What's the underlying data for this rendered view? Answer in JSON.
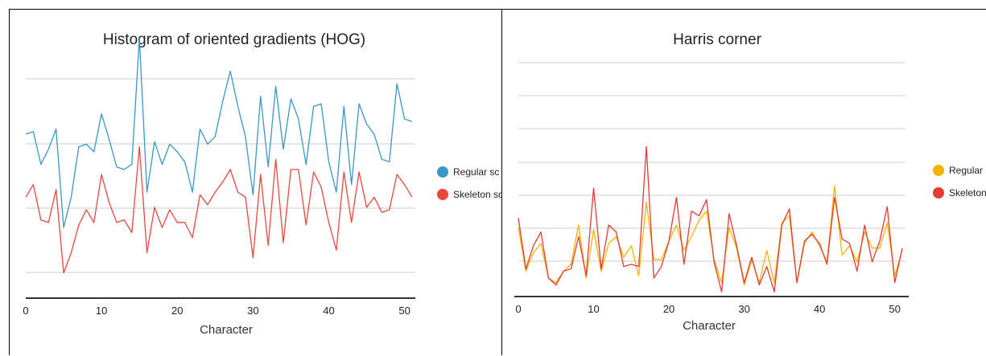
{
  "chart_data": [
    {
      "type": "line",
      "title": "Histogram of oriented gradients (HOG)",
      "xlabel": "Character",
      "ylabel": "",
      "xlim": [
        0,
        51
      ],
      "ylim": [
        0,
        10
      ],
      "x_ticks": [
        0,
        10,
        20,
        30,
        40,
        50
      ],
      "grid": true,
      "legend_position": "right",
      "legend": [
        "Regular sc",
        "Skeleton sc"
      ],
      "series": [
        {
          "name": "Regular sc",
          "color": "#3b96c4",
          "values": [
            6.5,
            6.6,
            5.3,
            5.9,
            6.7,
            2.8,
            4.0,
            6.0,
            6.1,
            5.8,
            7.3,
            6.3,
            5.2,
            5.1,
            5.3,
            10.3,
            4.2,
            6.2,
            5.3,
            6.1,
            5.8,
            5.4,
            4.2,
            6.7,
            6.1,
            6.4,
            7.8,
            9.0,
            7.6,
            6.4,
            4.1,
            8.0,
            5.2,
            8.4,
            5.9,
            7.9,
            7.1,
            5.3,
            7.6,
            7.7,
            5.4,
            4.2,
            7.6,
            4.5,
            7.7,
            6.9,
            6.5,
            5.5,
            5.4,
            8.5,
            7.1,
            7.0
          ]
        },
        {
          "name": "Skeleton sc",
          "color": "#e8473b",
          "values": [
            4.0,
            4.5,
            3.1,
            3.0,
            4.3,
            1.0,
            1.8,
            2.9,
            3.5,
            3.0,
            4.9,
            3.8,
            3.0,
            3.1,
            2.6,
            6.0,
            1.8,
            3.6,
            2.8,
            3.5,
            3.0,
            3.0,
            2.4,
            4.1,
            3.7,
            4.2,
            4.6,
            5.1,
            4.2,
            4.0,
            1.6,
            4.9,
            2.1,
            5.5,
            2.2,
            5.1,
            5.1,
            2.9,
            5.0,
            4.4,
            3.0,
            1.9,
            5.0,
            3.0,
            5.0,
            3.6,
            4.0,
            3.4,
            3.5,
            4.9,
            4.5,
            4.0
          ]
        }
      ]
    },
    {
      "type": "line",
      "title": "Harris corner",
      "xlabel": "Character",
      "ylabel": "",
      "xlim": [
        0,
        51
      ],
      "ylim": [
        0,
        10
      ],
      "x_ticks": [
        0,
        10,
        20,
        30,
        40,
        50
      ],
      "grid": true,
      "legend_position": "right",
      "legend": [
        "Regular s",
        "Skeleton"
      ],
      "series": [
        {
          "name": "Regular s",
          "color": "#f4b400",
          "values": [
            3.0,
            1.1,
            1.9,
            2.3,
            0.8,
            0.6,
            1.1,
            1.4,
            3.1,
            0.8,
            2.9,
            1.1,
            2.3,
            2.6,
            1.7,
            2.2,
            0.9,
            4.1,
            1.6,
            1.6,
            2.4,
            3.1,
            2.0,
            2.6,
            3.3,
            3.7,
            1.6,
            0.6,
            3.0,
            2.1,
            0.5,
            1.6,
            0.6,
            2.0,
            0.6,
            3.2,
            3.5,
            0.6,
            2.3,
            2.8,
            2.2,
            1.5,
            4.8,
            1.8,
            2.2,
            1.5,
            2.8,
            2.1,
            2.1,
            3.2,
            0.9,
            2.0
          ]
        },
        {
          "name": "Skeleton",
          "color": "#e53935",
          "values": [
            3.4,
            1.2,
            2.2,
            2.8,
            0.8,
            0.5,
            1.1,
            1.2,
            2.6,
            0.9,
            4.7,
            1.2,
            3.1,
            2.8,
            1.3,
            1.4,
            1.3,
            6.5,
            0.8,
            1.3,
            2.4,
            4.3,
            1.4,
            3.7,
            3.5,
            4.2,
            1.5,
            0.2,
            3.6,
            2.2,
            0.6,
            1.7,
            0.5,
            1.3,
            0.2,
            3.1,
            3.8,
            0.6,
            2.4,
            2.7,
            2.3,
            1.4,
            4.3,
            2.5,
            2.3,
            1.1,
            3.1,
            1.5,
            2.4,
            3.9,
            0.6,
            2.1
          ]
        }
      ]
    }
  ]
}
